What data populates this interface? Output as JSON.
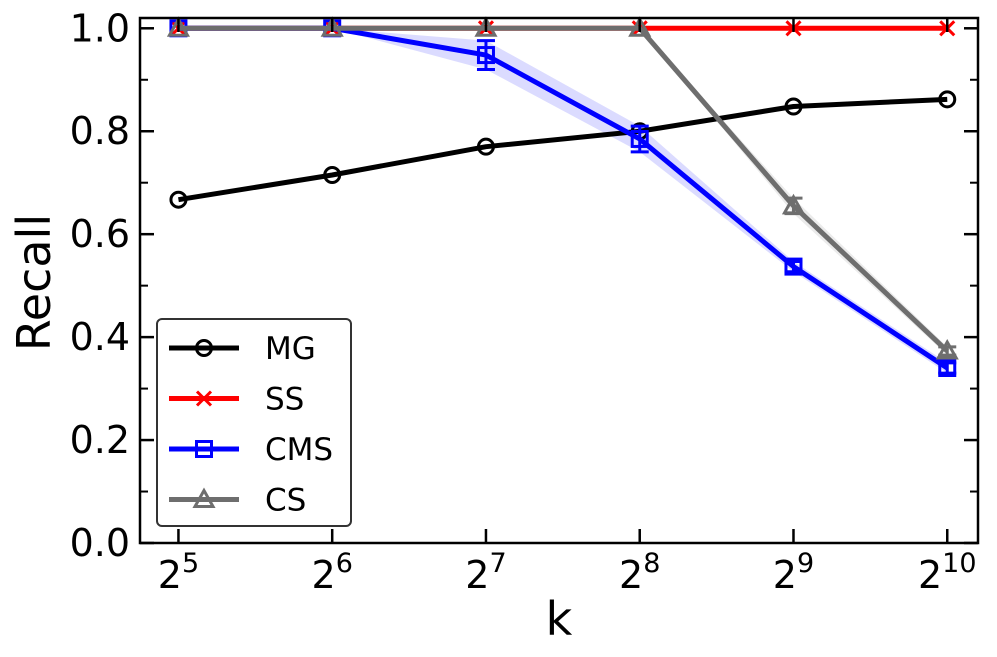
{
  "chart_data": {
    "type": "line",
    "title": "",
    "xlabel": "k",
    "ylabel": "Recall",
    "x_scale": "log2",
    "x": [
      5,
      6,
      7,
      8,
      9,
      10
    ],
    "x_tick_labels": [
      {
        "base": "2",
        "exp": "5"
      },
      {
        "base": "2",
        "exp": "6"
      },
      {
        "base": "2",
        "exp": "7"
      },
      {
        "base": "2",
        "exp": "8"
      },
      {
        "base": "2",
        "exp": "9"
      },
      {
        "base": "2",
        "exp": "10"
      }
    ],
    "xlim": [
      4.75,
      10.2
    ],
    "ylim": [
      0.0,
      1.02
    ],
    "y_ticks": [
      "0.0",
      "0.2",
      "0.4",
      "0.6",
      "0.8",
      "1.0"
    ],
    "grid": false,
    "legend_position": "bottom-left",
    "series": [
      {
        "name": "MG",
        "color": "#000000",
        "marker": "circle",
        "values": [
          0.667,
          0.715,
          0.77,
          0.8,
          0.848,
          0.862
        ],
        "err": [
          0,
          0,
          0,
          0,
          0,
          0
        ]
      },
      {
        "name": "SS",
        "color": "#ff0000",
        "marker": "x",
        "values": [
          1.0,
          1.0,
          1.0,
          1.0,
          1.0,
          1.0
        ],
        "err": [
          0,
          0,
          0,
          0,
          0,
          0
        ]
      },
      {
        "name": "CMS",
        "color": "#0000ff",
        "marker": "square",
        "values": [
          1.0,
          1.0,
          0.948,
          0.785,
          0.537,
          0.34
        ],
        "err": [
          0,
          0,
          0.028,
          0.025,
          0.01,
          0.01
        ]
      },
      {
        "name": "CS",
        "color": "#6e6e6e",
        "marker": "triangle",
        "values": [
          1.0,
          1.0,
          1.0,
          1.0,
          0.655,
          0.373
        ],
        "err": [
          0,
          0,
          0,
          0,
          0.015,
          0.008
        ]
      }
    ]
  }
}
